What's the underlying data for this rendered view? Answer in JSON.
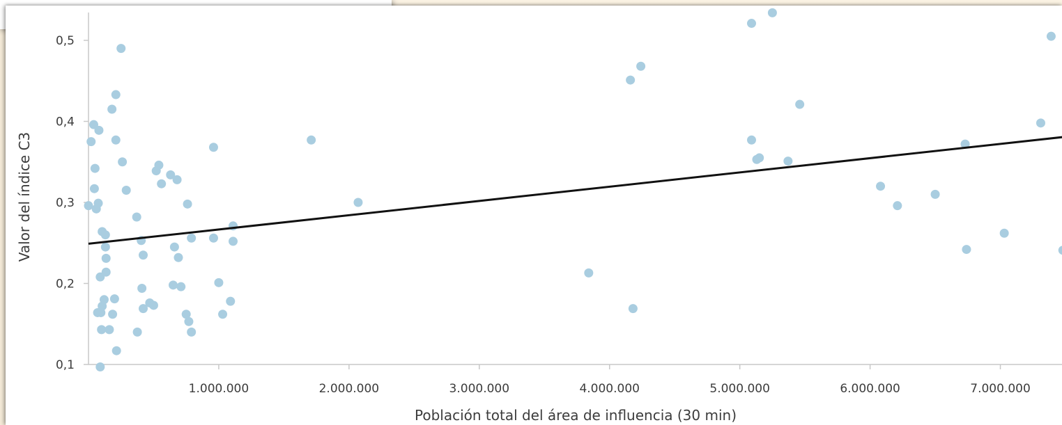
{
  "chart_data": {
    "type": "scatter",
    "title": "",
    "xlabel": "Población total del área de influencia (30 min)",
    "ylabel": "Valor del índice C3",
    "xlim": [
      0,
      7500000
    ],
    "ylim": [
      0.1,
      0.5
    ],
    "x_ticks": [
      {
        "value": 1000000,
        "label": "1.000.000"
      },
      {
        "value": 2000000,
        "label": "2.000.000"
      },
      {
        "value": 3000000,
        "label": "3.000.000"
      },
      {
        "value": 4000000,
        "label": "4.000.000"
      },
      {
        "value": 5000000,
        "label": "5.000.000"
      },
      {
        "value": 6000000,
        "label": "6.000.000"
      },
      {
        "value": 7000000,
        "label": "7.000.000"
      }
    ],
    "y_ticks": [
      {
        "value": 0.1,
        "label": "0,1"
      },
      {
        "value": 0.2,
        "label": "0,2"
      },
      {
        "value": 0.3,
        "label": "0,3"
      },
      {
        "value": 0.4,
        "label": "0,4"
      },
      {
        "value": 0.5,
        "label": "0,5"
      }
    ],
    "grid": false,
    "marker_color": "#a9cde0",
    "line_color": "#111111",
    "trendline": {
      "x": [
        0,
        7500000
      ],
      "y": [
        0.249,
        0.381
      ]
    },
    "points": [
      [
        0,
        0.296
      ],
      [
        20000,
        0.375
      ],
      [
        40000,
        0.396
      ],
      [
        45000,
        0.317
      ],
      [
        50000,
        0.342
      ],
      [
        60000,
        0.292
      ],
      [
        70000,
        0.164
      ],
      [
        75000,
        0.299
      ],
      [
        80000,
        0.389
      ],
      [
        90000,
        0.208
      ],
      [
        90000,
        0.097
      ],
      [
        95000,
        0.164
      ],
      [
        100000,
        0.143
      ],
      [
        105000,
        0.172
      ],
      [
        105000,
        0.264
      ],
      [
        120000,
        0.18
      ],
      [
        130000,
        0.26
      ],
      [
        130000,
        0.245
      ],
      [
        135000,
        0.231
      ],
      [
        135000,
        0.214
      ],
      [
        160000,
        0.143
      ],
      [
        180000,
        0.415
      ],
      [
        185000,
        0.162
      ],
      [
        200000,
        0.181
      ],
      [
        210000,
        0.433
      ],
      [
        210000,
        0.377
      ],
      [
        215000,
        0.117
      ],
      [
        250000,
        0.49
      ],
      [
        260000,
        0.35
      ],
      [
        290000,
        0.315
      ],
      [
        370000,
        0.282
      ],
      [
        375000,
        0.14
      ],
      [
        405000,
        0.253
      ],
      [
        410000,
        0.194
      ],
      [
        420000,
        0.235
      ],
      [
        420000,
        0.169
      ],
      [
        470000,
        0.176
      ],
      [
        500000,
        0.173
      ],
      [
        520000,
        0.339
      ],
      [
        540000,
        0.346
      ],
      [
        560000,
        0.323
      ],
      [
        630000,
        0.334
      ],
      [
        650000,
        0.198
      ],
      [
        660000,
        0.245
      ],
      [
        680000,
        0.328
      ],
      [
        690000,
        0.232
      ],
      [
        710000,
        0.196
      ],
      [
        750000,
        0.162
      ],
      [
        760000,
        0.298
      ],
      [
        770000,
        0.153
      ],
      [
        790000,
        0.256
      ],
      [
        790000,
        0.14
      ],
      [
        960000,
        0.368
      ],
      [
        960000,
        0.256
      ],
      [
        1000000,
        0.201
      ],
      [
        1030000,
        0.162
      ],
      [
        1090000,
        0.178
      ],
      [
        1110000,
        0.271
      ],
      [
        1110000,
        0.252
      ],
      [
        1710000,
        0.377
      ],
      [
        2070000,
        0.3
      ],
      [
        3840000,
        0.213
      ],
      [
        4160000,
        0.451
      ],
      [
        4180000,
        0.169
      ],
      [
        4240000,
        0.468
      ],
      [
        5090000,
        0.521
      ],
      [
        5090000,
        0.377
      ],
      [
        5130000,
        0.353
      ],
      [
        5150000,
        0.355
      ],
      [
        5250000,
        0.534
      ],
      [
        5370000,
        0.351
      ],
      [
        5460000,
        0.421
      ],
      [
        6080000,
        0.32
      ],
      [
        6210000,
        0.296
      ],
      [
        6500000,
        0.31
      ],
      [
        6730000,
        0.372
      ],
      [
        6740000,
        0.242
      ],
      [
        7030000,
        0.262
      ],
      [
        7310000,
        0.398
      ],
      [
        7390000,
        0.505
      ],
      [
        7480000,
        0.241
      ]
    ]
  }
}
